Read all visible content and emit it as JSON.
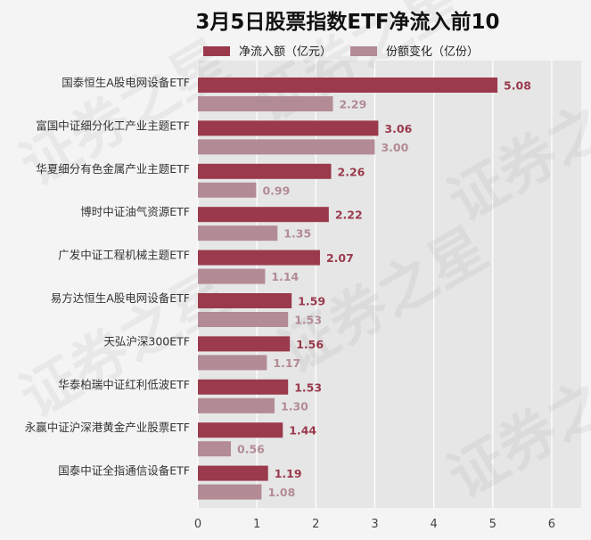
{
  "chart_data": {
    "type": "bar",
    "orientation": "horizontal",
    "title": "3月5日股票指数ETF净流入前10",
    "categories": [
      "国泰恒生A股电网设备ETF",
      "富国中证细分化工产业主题ETF",
      "华夏细分有色金属产业主题ETF",
      "博时中证油气资源ETF",
      "广发中证工程机械主题ETF",
      "易方达恒生A股电网设备ETF",
      "天弘沪深300ETF",
      "华泰柏瑞中证红利低波ETF",
      "永赢中证沪深港黄金产业股票ETF",
      "国泰中证全指通信设备ETF"
    ],
    "series": [
      {
        "name": "净流入额（亿元）",
        "color": "#9a3a4c",
        "values": [
          5.08,
          3.06,
          2.26,
          2.22,
          2.07,
          1.59,
          1.56,
          1.53,
          1.44,
          1.19
        ],
        "labels": [
          "5.08",
          "3.06",
          "2.26",
          "2.22",
          "2.07",
          "1.59",
          "1.56",
          "1.53",
          "1.44",
          "1.19"
        ]
      },
      {
        "name": "份额变化（亿份）",
        "color": "#b28b94",
        "values": [
          2.29,
          3.0,
          0.99,
          1.35,
          1.14,
          1.53,
          1.17,
          1.3,
          0.56,
          1.08
        ],
        "labels": [
          "2.29",
          "3.00",
          "0.99",
          "1.35",
          "1.14",
          "1.53",
          "1.17",
          "1.30",
          "0.56",
          "1.08"
        ]
      }
    ],
    "xlim": [
      0,
      6.5
    ],
    "xticks": [
      0,
      1,
      2,
      3,
      4,
      5,
      6
    ],
    "xtick_labels": [
      "0",
      "1",
      "2",
      "3",
      "4",
      "5",
      "6"
    ],
    "grid": true,
    "legend_position": "top",
    "watermark": "证券之星"
  }
}
